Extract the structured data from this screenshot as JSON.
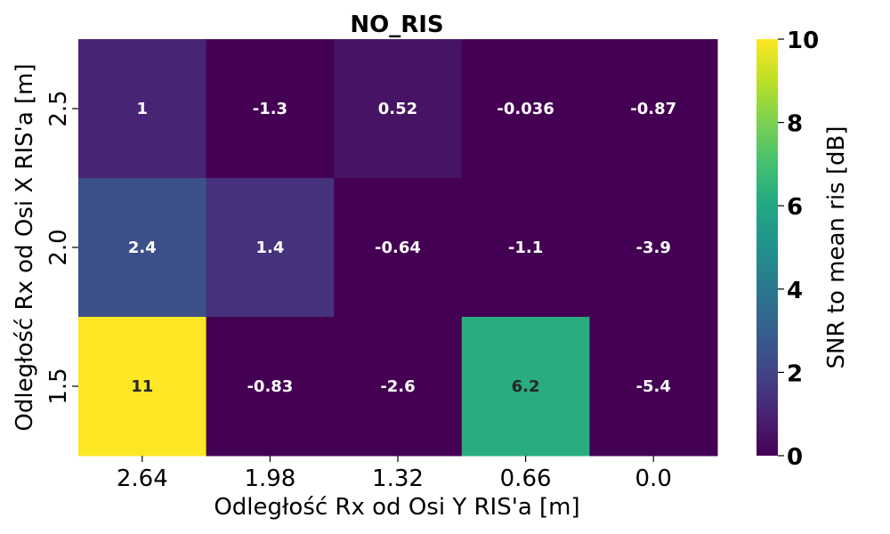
{
  "chart_data": {
    "type": "heatmap",
    "title": "NO_RIS",
    "xlabel": "Odległość Rx od Osi Y RIS'a [m]",
    "ylabel": "Odległość Rx od Osi X RIS'a [m]",
    "x_categories": [
      "2.64",
      "1.98",
      "1.32",
      "0.66",
      "0.0"
    ],
    "y_categories": [
      "2.5",
      "2.0",
      "1.5"
    ],
    "values": [
      [
        1,
        -1.3,
        0.52,
        -0.036,
        -0.87
      ],
      [
        2.4,
        1.4,
        -0.64,
        -1.1,
        -3.9
      ],
      [
        11,
        -0.83,
        -2.6,
        6.2,
        -5.4
      ]
    ],
    "cell_labels": [
      [
        "1",
        "-1.3",
        "0.52",
        "-0.036",
        "-0.87"
      ],
      [
        "2.4",
        "1.4",
        "-0.64",
        "-1.1",
        "-3.9"
      ],
      [
        "11",
        "-0.83",
        "-2.6",
        "6.2",
        "-5.4"
      ]
    ],
    "colorbar": {
      "label": "SNR to mean ris [dB]",
      "range": [
        0,
        10
      ],
      "ticks": [
        "0",
        "2",
        "4",
        "6",
        "8",
        "10"
      ],
      "colormap": "viridis"
    },
    "grid": false
  }
}
